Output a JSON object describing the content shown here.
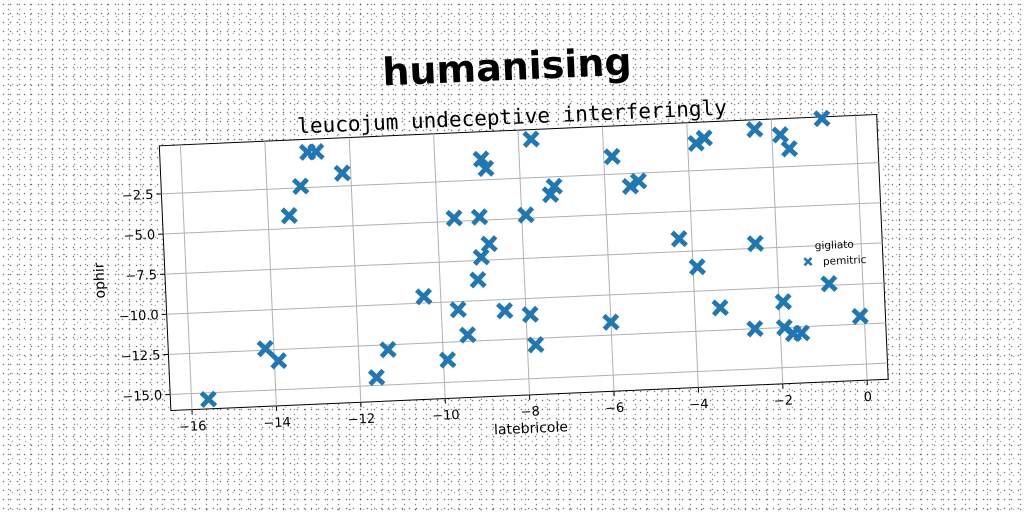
{
  "chart_data": {
    "type": "scatter",
    "title": "humanising",
    "subtitle": "leucojum undeceptive interferingly",
    "xlabel": "latebricole",
    "ylabel": "ophir",
    "xlim": [
      -16.5,
      0.5
    ],
    "ylim": [
      -16.0,
      0.5
    ],
    "xticks": [
      -16,
      -14,
      -12,
      -10,
      -8,
      -6,
      -4,
      -2,
      0
    ],
    "yticks": [
      -15.0,
      -12.5,
      -10.0,
      -7.5,
      -5.0,
      -2.5
    ],
    "grid": true,
    "legend": {
      "placement": "right",
      "title": "gigliato",
      "entries": [
        "pemitric"
      ]
    },
    "marker": "X",
    "color": "#1f77b4",
    "series": [
      {
        "name": "pemitric",
        "points": [
          [
            -15.6,
            -15.4
          ],
          [
            -14.2,
            -12.4
          ],
          [
            -13.9,
            -13.2
          ],
          [
            -13.5,
            -4.2
          ],
          [
            -13.2,
            -2.4
          ],
          [
            -13.0,
            -0.3
          ],
          [
            -12.8,
            -0.3
          ],
          [
            -12.2,
            -1.7
          ],
          [
            -11.6,
            -14.5
          ],
          [
            -11.3,
            -12.8
          ],
          [
            -10.4,
            -9.6
          ],
          [
            -9.9,
            -13.6
          ],
          [
            -9.6,
            -10.5
          ],
          [
            -9.6,
            -4.8
          ],
          [
            -9.4,
            -12.1
          ],
          [
            -9.1,
            -8.7
          ],
          [
            -9.0,
            -7.3
          ],
          [
            -9.0,
            -4.8
          ],
          [
            -8.8,
            -6.5
          ],
          [
            -8.9,
            -1.2
          ],
          [
            -8.8,
            -1.8
          ],
          [
            -8.5,
            -10.7
          ],
          [
            -7.9,
            -11.0
          ],
          [
            -7.8,
            -12.9
          ],
          [
            -7.9,
            -4.8
          ],
          [
            -7.7,
            -0.1
          ],
          [
            -7.3,
            -3.6
          ],
          [
            -7.2,
            -3.1
          ],
          [
            -6.0,
            -11.7
          ],
          [
            -5.8,
            -1.4
          ],
          [
            -5.4,
            -3.3
          ],
          [
            -5.2,
            -3.0
          ],
          [
            -4.3,
            -6.7
          ],
          [
            -3.9,
            -8.5
          ],
          [
            -3.8,
            -0.8
          ],
          [
            -3.6,
            -0.5
          ],
          [
            -3.4,
            -11.1
          ],
          [
            -2.6,
            -12.5
          ],
          [
            -2.5,
            -7.2
          ],
          [
            -2.4,
            -0.1
          ],
          [
            -1.9,
            -10.9
          ],
          [
            -1.9,
            -12.5
          ],
          [
            -1.7,
            -12.9
          ],
          [
            -1.8,
            -0.5
          ],
          [
            -1.6,
            -1.4
          ],
          [
            -1.5,
            -12.9
          ],
          [
            -0.8,
            -9.9
          ],
          [
            -0.8,
            0.4
          ],
          [
            -0.1,
            -12.0
          ]
        ]
      }
    ]
  }
}
